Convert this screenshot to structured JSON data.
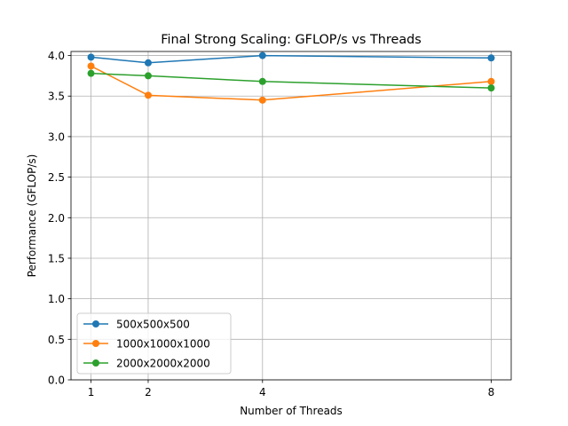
{
  "chart_data": {
    "type": "line",
    "title": "Final Strong Scaling: GFLOP/s vs Threads",
    "xlabel": "Number of Threads",
    "ylabel": "Performance (GFLOP/s)",
    "x": [
      1,
      2,
      4,
      8
    ],
    "xticks": [
      1,
      2,
      4,
      8
    ],
    "xlim": [
      0.65,
      8.35
    ],
    "ylim": [
      0.0,
      4.05
    ],
    "yticks": [
      0.0,
      0.5,
      1.0,
      1.5,
      2.0,
      2.5,
      3.0,
      3.5,
      4.0
    ],
    "ytick_labels": [
      "0.0",
      "0.5",
      "1.0",
      "1.5",
      "2.0",
      "2.5",
      "3.0",
      "3.5",
      "4.0"
    ],
    "grid": true,
    "legend_position": "lower-left",
    "series": [
      {
        "name": "500x500x500",
        "color": "#1f77b4",
        "values": [
          3.98,
          3.91,
          4.0,
          3.97
        ]
      },
      {
        "name": "1000x1000x1000",
        "color": "#ff7f0e",
        "values": [
          3.87,
          3.51,
          3.45,
          3.68
        ]
      },
      {
        "name": "2000x2000x2000",
        "color": "#2ca02c",
        "values": [
          3.78,
          3.75,
          3.68,
          3.6
        ]
      }
    ]
  }
}
